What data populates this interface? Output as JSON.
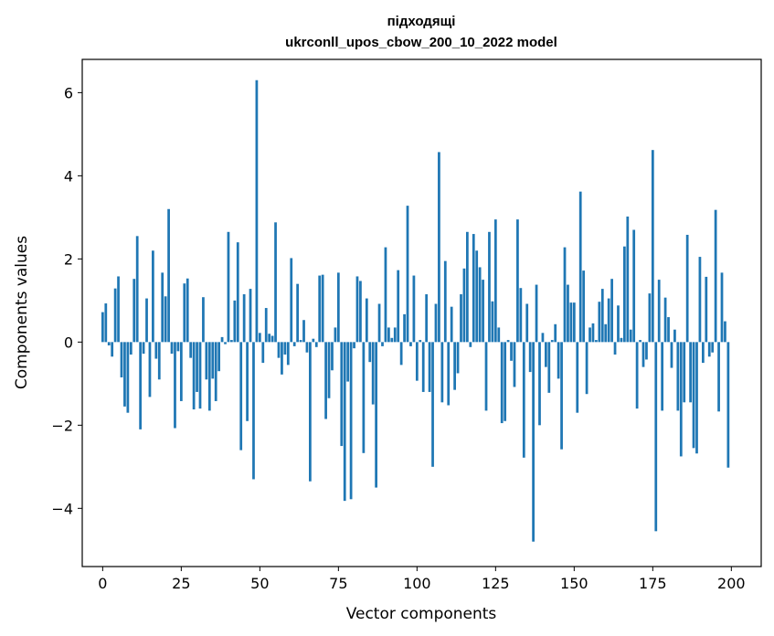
{
  "chart_data": {
    "type": "bar",
    "title_line1": "підходящі",
    "title_line2": "ukrconll_upos_cbow_200_10_2022 model",
    "xlabel": "Vector components",
    "ylabel": "Components values",
    "xlim": [
      -6.5,
      209.5
    ],
    "ylim": [
      -5.4,
      6.8
    ],
    "xticks": [
      0,
      25,
      50,
      75,
      100,
      125,
      150,
      175,
      200
    ],
    "xtick_labels": [
      "0",
      "25",
      "50",
      "75",
      "100",
      "125",
      "150",
      "175",
      "200"
    ],
    "yticks": [
      -4,
      -2,
      0,
      2,
      4,
      6
    ],
    "ytick_labels": [
      "−4",
      "−2",
      "0",
      "2",
      "4",
      "6"
    ],
    "bar_color": "#1f77b4",
    "grid": false,
    "values": [
      0.72,
      0.93,
      -0.08,
      -0.35,
      1.29,
      1.58,
      -0.85,
      -1.55,
      -1.7,
      -0.3,
      1.52,
      2.55,
      -2.1,
      -0.28,
      1.05,
      -1.32,
      2.2,
      -0.4,
      -0.9,
      1.67,
      1.1,
      3.2,
      -0.28,
      -2.07,
      -0.22,
      -1.42,
      1.41,
      1.53,
      -0.38,
      -1.62,
      -1.2,
      -1.6,
      1.08,
      -0.9,
      -1.65,
      -0.88,
      -1.42,
      -0.7,
      0.12,
      -0.05,
      2.65,
      0.05,
      1.0,
      2.4,
      -2.6,
      1.15,
      -1.9,
      1.28,
      -3.3,
      6.3,
      0.22,
      -0.5,
      0.82,
      0.2,
      0.15,
      2.88,
      -0.38,
      -0.78,
      -0.3,
      -0.55,
      2.02,
      -0.1,
      1.4,
      0.05,
      0.53,
      -0.25,
      -3.35,
      0.08,
      -0.12,
      1.6,
      1.62,
      -1.85,
      -1.35,
      -0.68,
      0.35,
      1.67,
      -2.5,
      -3.82,
      -0.95,
      -3.78,
      -0.15,
      1.58,
      1.47,
      -2.67,
      1.05,
      -0.48,
      -1.5,
      -3.5,
      0.92,
      -0.1,
      2.28,
      0.35,
      0.1,
      0.35,
      1.73,
      -0.55,
      0.67,
      3.28,
      -0.1,
      1.6,
      -0.93,
      0.05,
      -1.2,
      1.15,
      -1.2,
      -3.0,
      0.92,
      4.57,
      -1.45,
      1.95,
      -1.52,
      0.85,
      -1.15,
      -0.75,
      1.15,
      1.77,
      2.65,
      -0.12,
      2.6,
      2.2,
      1.8,
      1.5,
      -1.65,
      2.65,
      0.98,
      2.95,
      0.35,
      -1.95,
      -1.9,
      0.05,
      -0.45,
      -1.08,
      2.95,
      1.3,
      -2.78,
      0.92,
      -0.72,
      -4.8,
      1.38,
      -2.0,
      0.22,
      -0.6,
      -1.22,
      0.05,
      0.43,
      -0.88,
      -2.58,
      2.28,
      1.38,
      0.95,
      0.95,
      -1.7,
      3.62,
      1.72,
      -1.25,
      0.35,
      0.45,
      0.05,
      0.97,
      1.28,
      0.43,
      1.05,
      1.52,
      -0.3,
      0.88,
      0.1,
      2.3,
      3.02,
      0.3,
      2.7,
      -1.6,
      0.05,
      -0.6,
      -0.42,
      1.17,
      4.62,
      -4.55,
      1.5,
      -1.65,
      1.07,
      0.6,
      -0.62,
      0.3,
      -1.65,
      -2.75,
      -1.45,
      2.58,
      -1.45,
      -2.55,
      -2.68,
      2.05,
      -0.5,
      1.57,
      -0.35,
      -0.25,
      3.18,
      -1.67,
      1.67,
      0.5,
      -3.02
    ]
  }
}
